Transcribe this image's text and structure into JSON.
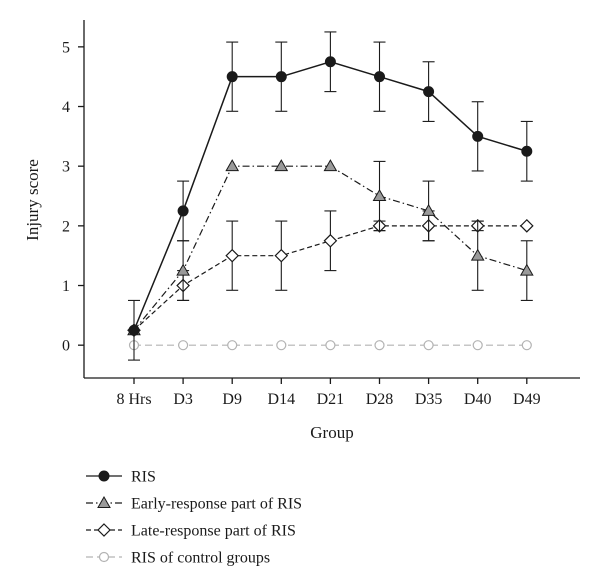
{
  "chart_data": {
    "type": "line",
    "xlabel": "Group",
    "ylabel": "Injury score",
    "categories": [
      "8 Hrs",
      "D3",
      "D9",
      "D14",
      "D21",
      "D28",
      "D35",
      "D40",
      "D49"
    ],
    "ylim": [
      -0.55,
      5.45
    ],
    "yticks": [
      0,
      1,
      2,
      3,
      4,
      5
    ],
    "grid": false,
    "legend_position": "bottom",
    "series": [
      {
        "name": "RIS",
        "marker": "circle-filled",
        "line": "solid",
        "color": "#1a1a1a",
        "values": [
          0.25,
          2.25,
          4.5,
          4.5,
          4.75,
          4.5,
          4.25,
          3.5,
          3.25
        ],
        "errors": [
          0.5,
          0.5,
          0.58,
          0.58,
          0.5,
          0.58,
          0.5,
          0.58,
          0.5
        ]
      },
      {
        "name": "Early-response part of RIS",
        "marker": "triangle-gray",
        "line": "dash-dot",
        "color": "#1a1a1a",
        "values": [
          0.25,
          1.25,
          3.0,
          3.0,
          3.0,
          2.5,
          2.25,
          1.5,
          1.25
        ],
        "errors": [
          0,
          0.5,
          0,
          0,
          0,
          0.58,
          0.5,
          0.58,
          0.5
        ]
      },
      {
        "name": "Late-response part of RIS",
        "marker": "diamond-open",
        "line": "dashed",
        "color": "#1a1a1a",
        "values": [
          0.25,
          1.0,
          1.5,
          1.5,
          1.75,
          2.0,
          2.0,
          2.0,
          2.0
        ],
        "errors": [
          0,
          0.25,
          0.58,
          0.58,
          0.5,
          0.08,
          0.25,
          0.08,
          0
        ]
      },
      {
        "name": "RIS of control groups",
        "marker": "circle-open",
        "line": "dashed-light",
        "color": "#b3b3b3",
        "values": [
          0,
          0,
          0,
          0,
          0,
          0,
          0,
          0,
          0
        ],
        "errors": [
          0,
          0,
          0,
          0,
          0,
          0,
          0,
          0,
          0
        ]
      }
    ]
  }
}
